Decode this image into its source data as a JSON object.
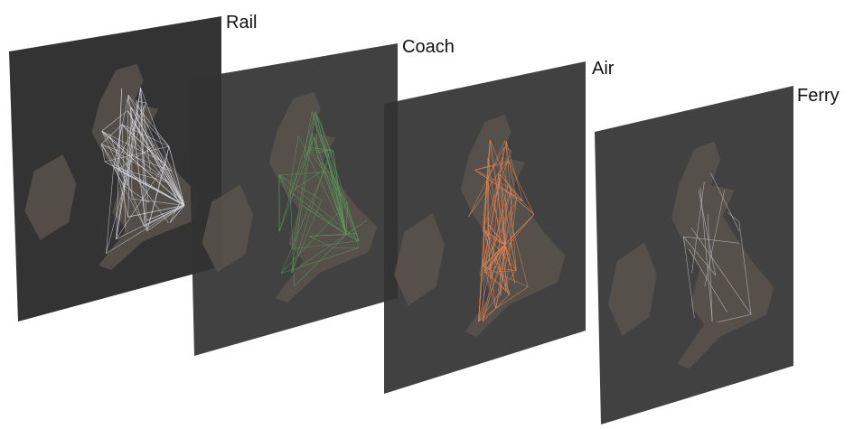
{
  "layers": [
    {
      "label": "Rail"
    },
    {
      "label": "Coach"
    },
    {
      "label": "Air"
    },
    {
      "label": "Ferry"
    }
  ]
}
